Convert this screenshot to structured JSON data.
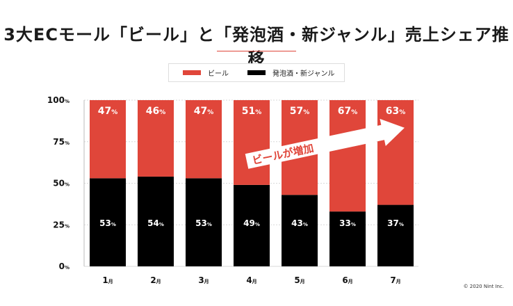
{
  "title": "3大ECモール「ビール」と「発泡酒・新ジャンル」売上シェア推移",
  "copyright": "© 2020 Nint Inc.",
  "colors": {
    "beer": "#e0463a",
    "happoshu": "#000000",
    "grid": "#d9d9d9"
  },
  "chart_data": {
    "type": "bar",
    "stacked": true,
    "categories": [
      "1月",
      "2月",
      "3月",
      "4月",
      "5月",
      "6月",
      "7月"
    ],
    "series": [
      {
        "name": "発泡酒・新ジャンル",
        "values": [
          53,
          54,
          53,
          49,
          43,
          33,
          37
        ]
      },
      {
        "name": "ビール",
        "values": [
          47,
          46,
          47,
          51,
          57,
          67,
          63
        ]
      }
    ],
    "ylim": [
      0,
      100
    ],
    "yticks": [
      0,
      25,
      50,
      75,
      100
    ],
    "value_suffix": "%",
    "legend": "top-center",
    "annotation": "ビールが増加"
  }
}
